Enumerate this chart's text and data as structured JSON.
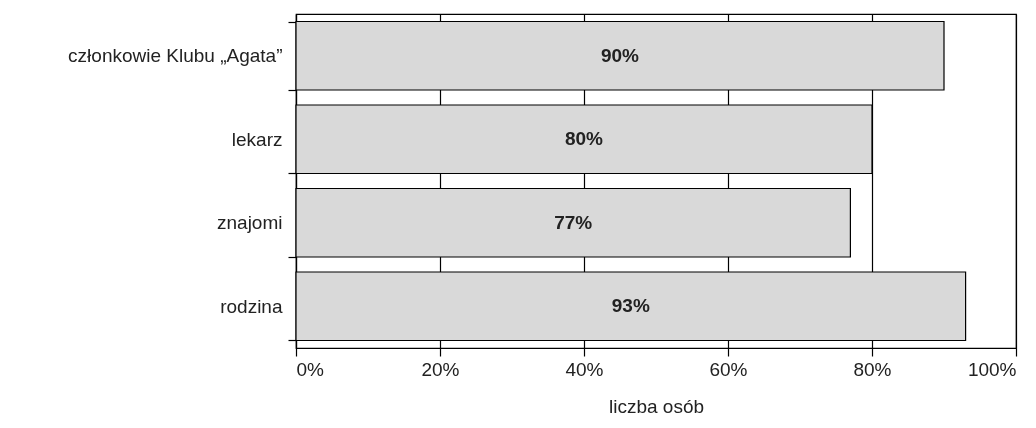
{
  "chart_data": {
    "type": "bar",
    "orientation": "horizontal",
    "xlabel": "liczba osób",
    "categories": [
      "członkowie Klubu „Agata”",
      "lekarz",
      "znajomi",
      "rodzina"
    ],
    "values": [
      90,
      80,
      77,
      93
    ],
    "value_labels": [
      "90%",
      "80%",
      "77%",
      "93%"
    ],
    "color": "#d9d9d9",
    "xlim": [
      0,
      100
    ],
    "xticks": [
      {
        "value": 0,
        "label": "0%"
      },
      {
        "value": 20,
        "label": "20%"
      },
      {
        "value": 40,
        "label": "40%"
      },
      {
        "value": 60,
        "label": "60%"
      },
      {
        "value": 80,
        "label": "80%"
      },
      {
        "value": 100,
        "label": "100%"
      }
    ],
    "grid": "x"
  }
}
